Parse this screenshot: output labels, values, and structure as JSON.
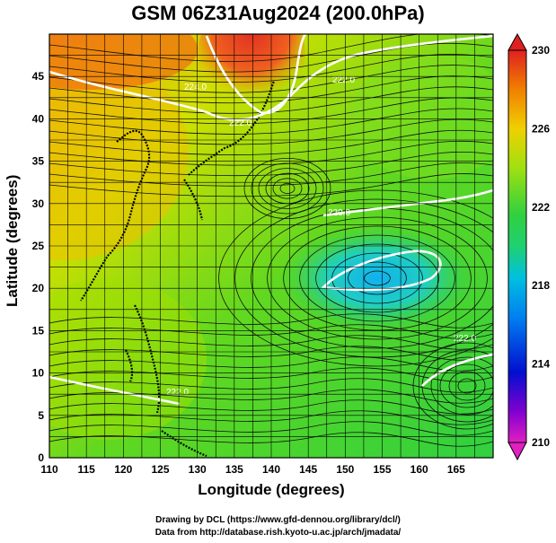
{
  "title": "GSM 06Z31Aug2024 (200.0hPa)",
  "map": {
    "xlabel": "Longitude (degrees)",
    "ylabel": "Latitude  (degrees)",
    "lon_range": [
      110,
      170
    ],
    "lat_range": [
      0,
      50
    ],
    "lon_ticks": [
      "110",
      "115",
      "120",
      "125",
      "130",
      "135",
      "140",
      "145",
      "150",
      "155",
      "160",
      "165"
    ],
    "lat_ticks": [
      "0",
      "5",
      "10",
      "15",
      "20",
      "25",
      "30",
      "35",
      "40",
      "45"
    ],
    "grid": true,
    "field": "temperature",
    "contour_labels": [
      "224.0",
      "222.0",
      "222.0",
      "220.0",
      "222.0",
      "222.0"
    ]
  },
  "colorbar": {
    "ticks": [
      "230",
      "226",
      "222",
      "218",
      "214",
      "210"
    ],
    "min": 210,
    "max": 230,
    "colors": [
      "#e020c0",
      "#8000d0",
      "#0010d0",
      "#0080f0",
      "#00c0e0",
      "#20d0a0",
      "#30d040",
      "#80e020",
      "#c0e000",
      "#f0d000",
      "#f08000",
      "#e02020"
    ]
  },
  "credits": {
    "line1": "Drawing by DCL (https://www.gfd-dennou.org/library/dcl/)",
    "line2": "Data from http://database.rish.kyoto-u.ac.jp/arch/jmadata/"
  }
}
